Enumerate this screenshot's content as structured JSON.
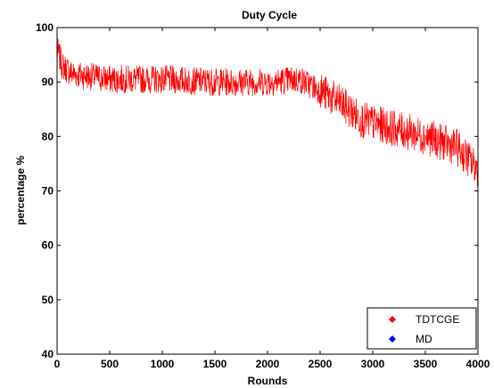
{
  "chart_data": {
    "type": "line",
    "title": "Duty Cycle",
    "xlabel": "Rounds",
    "ylabel": "percentage %",
    "xlim": [
      0,
      4000
    ],
    "ylim": [
      40,
      100
    ],
    "xticks": [
      "0",
      "500",
      "1000",
      "1500",
      "2000",
      "2500",
      "3000",
      "3500",
      "4000"
    ],
    "yticks": [
      "40",
      "50",
      "60",
      "70",
      "80",
      "90",
      "100"
    ],
    "grid": false,
    "legend_position": "bottom-right",
    "series": [
      {
        "name": "TDTCGE",
        "color": "#ff0000",
        "noisy": true,
        "x": [
          0,
          50,
          150,
          500,
          1000,
          1500,
          2000,
          2300,
          2500,
          2700,
          2900,
          3200,
          3500,
          3800,
          4000
        ],
        "y": [
          96,
          93,
          91.5,
          90.5,
          90.5,
          90,
          90,
          90.5,
          88.5,
          86,
          83,
          81.5,
          80,
          78,
          74
        ]
      },
      {
        "name": "MD",
        "color": "#0000ff",
        "noisy": false,
        "x": [
          0,
          4000
        ],
        "y": [
          100,
          100
        ]
      }
    ]
  }
}
